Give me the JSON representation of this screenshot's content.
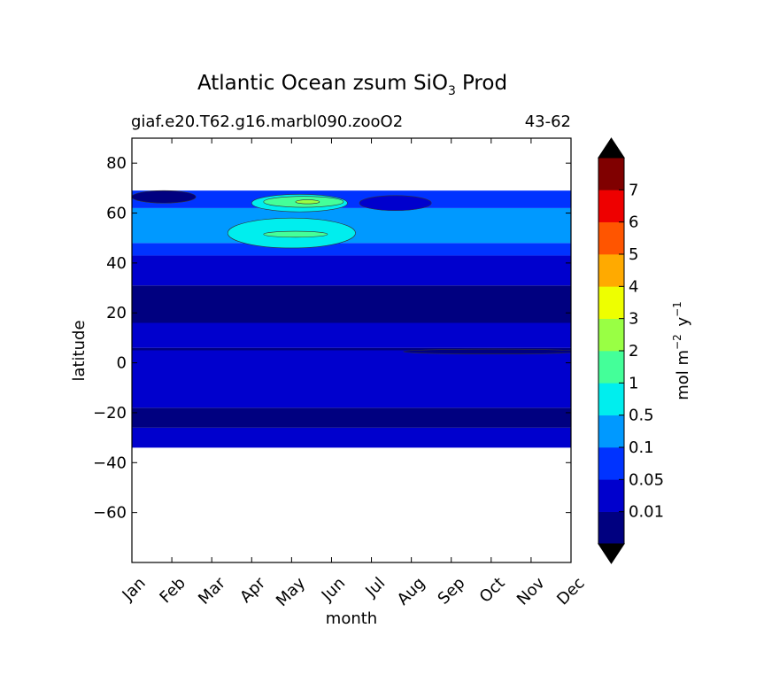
{
  "chart_data": {
    "type": "filled-contour",
    "title": "Atlantic Ocean zsum SiO",
    "title_subscript": "3",
    "title_suffix": "Prod",
    "subtitle_left": "giaf.e20.T62.g16.marbl090.zooO2",
    "subtitle_right": "43-62",
    "xlabel": "month",
    "ylabel": "latitude",
    "x_categories": [
      "Jan",
      "Feb",
      "Mar",
      "Apr",
      "May",
      "Jun",
      "Jul",
      "Aug",
      "Sep",
      "Oct",
      "Nov",
      "Dec"
    ],
    "ylim": [
      -80,
      90
    ],
    "y_ticks": [
      80,
      60,
      40,
      20,
      0,
      -20,
      -40,
      -60
    ],
    "y_tick_labels": [
      "80",
      "60",
      "40",
      "20",
      "0",
      "−20",
      "−40",
      "−60"
    ],
    "data_lat_range": [
      -34,
      69
    ],
    "colorbar": {
      "label_main": "mol m",
      "label_exp1": "−2",
      "label_mid": " y",
      "label_exp2": "−1",
      "levels": [
        0,
        0.01,
        0.05,
        0.1,
        0.5,
        1,
        2,
        3,
        4,
        5,
        6,
        7,
        8
      ],
      "tick_values": [
        0.01,
        0.05,
        0.1,
        0.5,
        1,
        2,
        3,
        4,
        5,
        6,
        7
      ],
      "tick_labels": [
        "0.01",
        "0.05",
        "0.1",
        "0.5",
        "1",
        "2",
        "3",
        "4",
        "5",
        "6",
        "7"
      ],
      "colors": [
        "#000080",
        "#0000cd",
        "#0033ff",
        "#0099ff",
        "#00eeee",
        "#44ff99",
        "#99ff44",
        "#eeff00",
        "#ffaa00",
        "#ff5500",
        "#ee0000",
        "#800000"
      ],
      "extend_colors": [
        "#000000",
        "#000000"
      ]
    },
    "latitude_bands": [
      {
        "lat_min": -34,
        "lat_max": -26,
        "level": 1
      },
      {
        "lat_min": -26,
        "lat_max": -18,
        "level": 0
      },
      {
        "lat_min": -18,
        "lat_max": 5,
        "level": 1
      },
      {
        "lat_min": 5,
        "lat_max": 6,
        "level": 0
      },
      {
        "lat_min": 6,
        "lat_max": 16,
        "level": 1
      },
      {
        "lat_min": 16,
        "lat_max": 31,
        "level": 0
      },
      {
        "lat_min": 31,
        "lat_max": 43,
        "level": 1
      },
      {
        "lat_min": 43,
        "lat_max": 48,
        "level": 2
      },
      {
        "lat_min": 48,
        "lat_max": 62,
        "level": 3
      },
      {
        "lat_min": 62,
        "lat_max": 69,
        "level": 2
      }
    ],
    "patches": [
      {
        "level": 4,
        "month_center": 4.0,
        "month_radius": 1.6,
        "lat_center": 52,
        "lat_radius": 6
      },
      {
        "level": 4,
        "month_center": 4.2,
        "month_radius": 1.2,
        "lat_center": 64,
        "lat_radius": 3.5
      },
      {
        "level": 5,
        "month_center": 4.3,
        "month_radius": 1.0,
        "lat_center": 64.5,
        "lat_radius": 2.2
      },
      {
        "level": 5,
        "month_center": 4.1,
        "month_radius": 0.8,
        "lat_center": 51.5,
        "lat_radius": 1.2
      },
      {
        "level": 6,
        "month_center": 4.4,
        "month_radius": 0.3,
        "lat_center": 64.5,
        "lat_radius": 0.8
      },
      {
        "level": 0,
        "month_center": 0.8,
        "month_radius": 0.8,
        "lat_center": 66.5,
        "lat_radius": 2.5
      },
      {
        "level": 1,
        "month_center": 6.6,
        "month_radius": 0.9,
        "lat_center": 64,
        "lat_radius": 3.0
      },
      {
        "level": 0,
        "month_center": 9.0,
        "month_radius": 2.2,
        "lat_center": 4.5,
        "lat_radius": 1.0
      }
    ]
  }
}
